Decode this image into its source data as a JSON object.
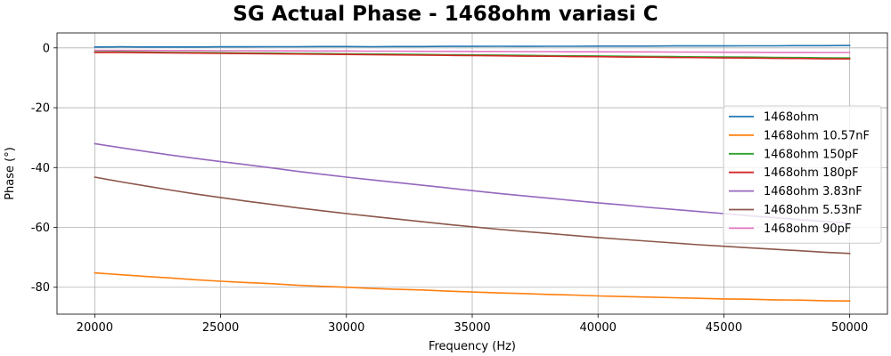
{
  "chart_data": {
    "type": "line",
    "title": "SG Actual Phase - 1468ohm variasi C",
    "xlabel": "Frequency (Hz)",
    "ylabel": "Phase (°)",
    "xlim": [
      18500,
      51500
    ],
    "ylim": [
      -89,
      5
    ],
    "xticks": [
      20000,
      25000,
      30000,
      35000,
      40000,
      45000,
      50000
    ],
    "yticks": [
      0,
      -20,
      -40,
      -60,
      -80
    ],
    "grid": true,
    "legend_position": "center-right",
    "x": [
      20000,
      21000,
      22000,
      23000,
      24000,
      25000,
      26000,
      27000,
      28000,
      29000,
      30000,
      31000,
      32000,
      33000,
      34000,
      35000,
      36000,
      37000,
      38000,
      39000,
      40000,
      41000,
      42000,
      43000,
      44000,
      45000,
      46000,
      47000,
      48000,
      49000,
      50000
    ],
    "series": [
      {
        "name": "1468ohm",
        "color": "#1f77b4",
        "values": [
          0.3,
          0.35,
          0.3,
          0.3,
          0.3,
          0.35,
          0.35,
          0.4,
          0.4,
          0.45,
          0.45,
          0.4,
          0.45,
          0.45,
          0.5,
          0.5,
          0.55,
          0.5,
          0.55,
          0.55,
          0.6,
          0.6,
          0.6,
          0.65,
          0.65,
          0.65,
          0.7,
          0.7,
          0.75,
          0.75,
          0.8
        ]
      },
      {
        "name": "1468ohm 10.57nF",
        "color": "#ff7f0e",
        "values": [
          -75.2,
          -75.8,
          -76.4,
          -76.9,
          -77.5,
          -78.0,
          -78.4,
          -78.8,
          -79.3,
          -79.7,
          -80.0,
          -80.4,
          -80.7,
          -80.9,
          -81.3,
          -81.6,
          -81.9,
          -82.1,
          -82.4,
          -82.6,
          -82.9,
          -83.1,
          -83.3,
          -83.5,
          -83.7,
          -83.9,
          -84.0,
          -84.2,
          -84.3,
          -84.5,
          -84.6
        ]
      },
      {
        "name": "1468ohm 150pF",
        "color": "#2ca02c",
        "values": [
          -1.3,
          -1.35,
          -1.4,
          -1.5,
          -1.55,
          -1.6,
          -1.7,
          -1.75,
          -1.85,
          -1.9,
          -2.0,
          -2.05,
          -2.1,
          -2.2,
          -2.3,
          -2.35,
          -2.4,
          -2.5,
          -2.6,
          -2.65,
          -2.7,
          -2.8,
          -2.85,
          -2.9,
          -3.0,
          -3.05,
          -3.1,
          -3.2,
          -3.25,
          -3.35,
          -3.4
        ]
      },
      {
        "name": "1468ohm 180pF",
        "color": "#d62728",
        "values": [
          -1.5,
          -1.55,
          -1.6,
          -1.7,
          -1.75,
          -1.85,
          -1.9,
          -2.0,
          -2.05,
          -2.15,
          -2.2,
          -2.3,
          -2.35,
          -2.45,
          -2.5,
          -2.6,
          -2.65,
          -2.75,
          -2.8,
          -2.9,
          -2.95,
          -3.05,
          -3.1,
          -3.2,
          -3.25,
          -3.35,
          -3.4,
          -3.5,
          -3.55,
          -3.65,
          -3.7
        ]
      },
      {
        "name": "1468ohm 3.83nF",
        "color": "#9467bd",
        "values": [
          -32.0,
          -33.3,
          -34.6,
          -35.8,
          -36.9,
          -38.0,
          -39.0,
          -40.1,
          -41.2,
          -42.2,
          -43.2,
          -44.1,
          -45.0,
          -45.9,
          -46.8,
          -47.7,
          -48.6,
          -49.4,
          -50.2,
          -51.0,
          -51.8,
          -52.5,
          -53.3,
          -54.0,
          -54.7,
          -55.4,
          -56.1,
          -56.7,
          -57.4,
          -58.0,
          -58.6
        ]
      },
      {
        "name": "1468ohm 5.53nF",
        "color": "#8c564b",
        "values": [
          -43.2,
          -44.7,
          -46.1,
          -47.5,
          -48.8,
          -50.0,
          -51.2,
          -52.3,
          -53.4,
          -54.4,
          -55.4,
          -56.3,
          -57.2,
          -58.1,
          -59.0,
          -59.8,
          -60.6,
          -61.3,
          -62.0,
          -62.7,
          -63.4,
          -64.0,
          -64.6,
          -65.2,
          -65.8,
          -66.3,
          -66.8,
          -67.3,
          -67.8,
          -68.3,
          -68.7
        ]
      },
      {
        "name": "1468ohm 90pF",
        "color": "#e377c2",
        "values": [
          -0.8,
          -0.85,
          -0.85,
          -0.9,
          -0.9,
          -0.95,
          -0.95,
          -1.0,
          -1.0,
          -1.05,
          -1.05,
          -1.1,
          -1.1,
          -1.15,
          -1.15,
          -1.2,
          -1.2,
          -1.25,
          -1.25,
          -1.3,
          -1.3,
          -1.35,
          -1.35,
          -1.4,
          -1.4,
          -1.45,
          -1.45,
          -1.5,
          -1.5,
          -1.55,
          -1.55
        ]
      }
    ]
  }
}
